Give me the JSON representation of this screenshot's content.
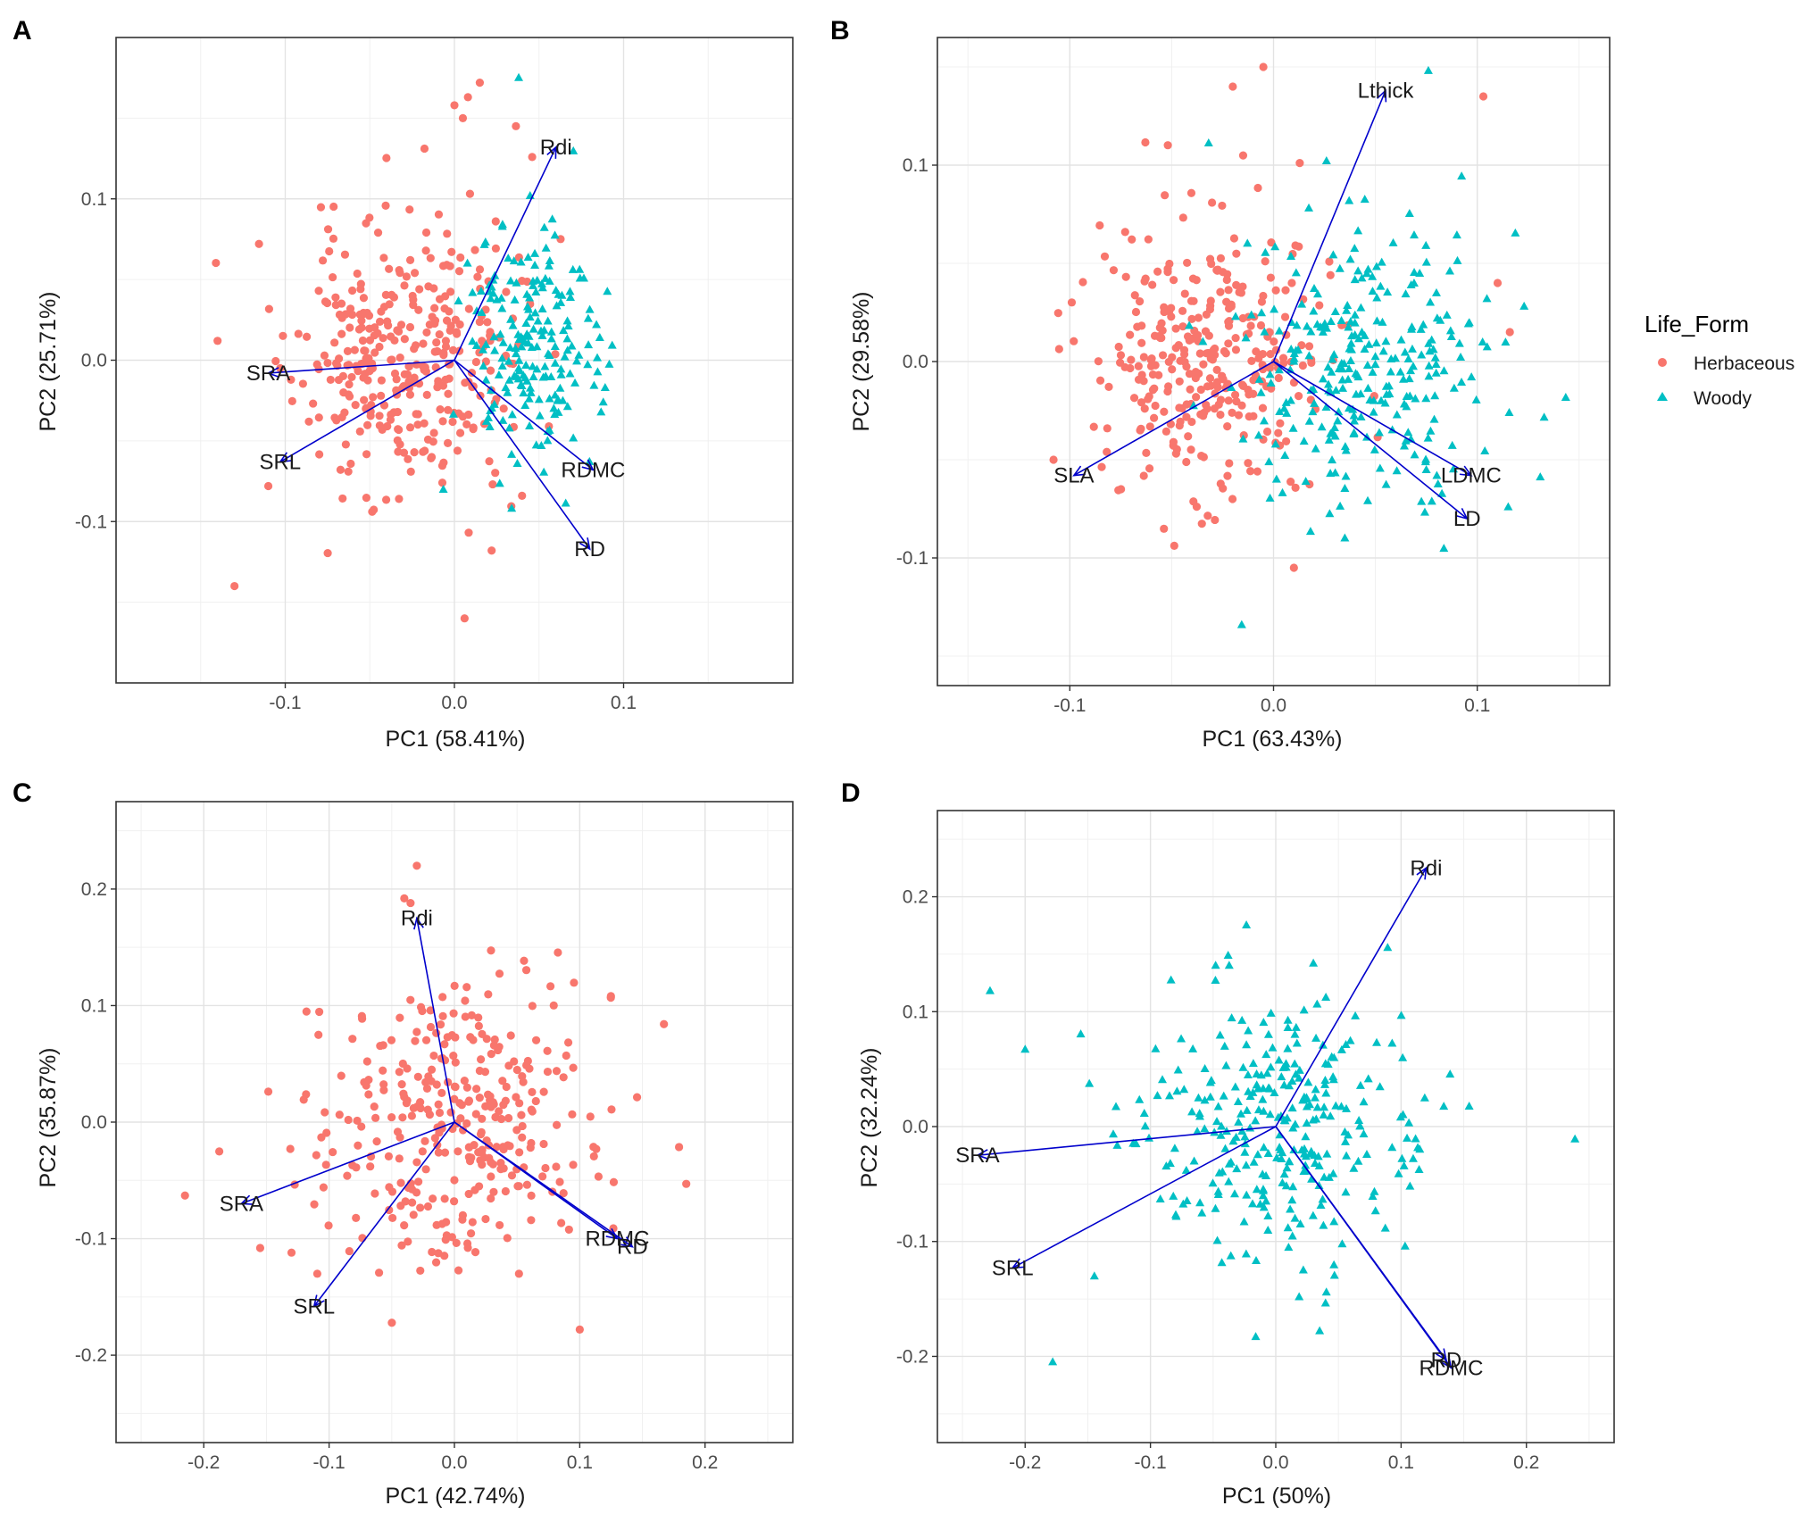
{
  "legend": {
    "title": "Life_Form",
    "items": [
      {
        "label": "Herbaceous",
        "color": "#F8766D",
        "shape": "circle"
      },
      {
        "label": "Woody",
        "color": "#00BFC4",
        "shape": "triangle"
      }
    ]
  },
  "arrow_color": "#0000CC",
  "chart_data": [
    {
      "panel": "A",
      "type": "scatter",
      "subtype": "pca-biplot",
      "xlabel": "PC1 (58.41%)",
      "ylabel": "PC2 (25.71%)",
      "xlim": [
        -0.2,
        0.2
      ],
      "ylim": [
        -0.2,
        0.2
      ],
      "xticks": [
        -0.1,
        0.0,
        0.1
      ],
      "xtick_labels": [
        "-0.1",
        "0.0",
        "0.1"
      ],
      "yticks": [
        -0.1,
        0.0,
        0.1
      ],
      "ytick_labels": [
        "-0.1",
        "0.0",
        "0.1"
      ],
      "loadings": [
        {
          "label": "Rdi",
          "x": 0.06,
          "y": 0.132
        },
        {
          "label": "SRA",
          "x": -0.11,
          "y": -0.008
        },
        {
          "label": "SRL",
          "x": -0.103,
          "y": -0.063
        },
        {
          "label": "RDMC",
          "x": 0.082,
          "y": -0.068
        },
        {
          "label": "RD",
          "x": 0.08,
          "y": -0.117
        }
      ],
      "clusters": [
        {
          "group": "Herbaceous",
          "n": 340,
          "cx": -0.03,
          "cy": 0.0,
          "sx": 0.032,
          "sy": 0.042,
          "seed": 11
        },
        {
          "group": "Woody",
          "n": 200,
          "cx": 0.045,
          "cy": 0.005,
          "sx": 0.02,
          "sy": 0.038,
          "seed": 23
        }
      ],
      "notable_points": [
        {
          "group": "Herbaceous",
          "x": 0.015,
          "y": 0.172
        },
        {
          "group": "Herbaceous",
          "x": 0.0,
          "y": 0.158
        },
        {
          "group": "Herbaceous",
          "x": 0.005,
          "y": 0.15
        },
        {
          "group": "Herbaceous",
          "x": 0.008,
          "y": 0.163
        },
        {
          "group": "Woody",
          "x": 0.038,
          "y": 0.175
        },
        {
          "group": "Herbaceous",
          "x": -0.14,
          "y": 0.012
        },
        {
          "group": "Herbaceous",
          "x": -0.13,
          "y": -0.14
        },
        {
          "group": "Herbaceous",
          "x": 0.006,
          "y": -0.16
        },
        {
          "group": "Herbaceous",
          "x": 0.022,
          "y": -0.118
        },
        {
          "group": "Herbaceous",
          "x": -0.11,
          "y": -0.078
        }
      ]
    },
    {
      "panel": "B",
      "type": "scatter",
      "subtype": "pca-biplot",
      "xlabel": "PC1 (63.43%)",
      "ylabel": "PC2 (29.58%)",
      "xlim": [
        -0.165,
        0.165
      ],
      "ylim": [
        -0.165,
        0.165
      ],
      "xticks": [
        -0.1,
        0.0,
        0.1
      ],
      "xtick_labels": [
        "-0.1",
        "0.0",
        "0.1"
      ],
      "yticks": [
        -0.1,
        0.0,
        0.1
      ],
      "ytick_labels": [
        "-0.1",
        "0.0",
        "0.1"
      ],
      "loadings": [
        {
          "label": "Lthick",
          "x": 0.055,
          "y": 0.138
        },
        {
          "label": "SLA",
          "x": -0.098,
          "y": -0.058
        },
        {
          "label": "LDMC",
          "x": 0.097,
          "y": -0.058
        },
        {
          "label": "LD",
          "x": 0.095,
          "y": -0.08
        }
      ],
      "clusters": [
        {
          "group": "Herbaceous",
          "n": 320,
          "cx": -0.03,
          "cy": 0.003,
          "sx": 0.028,
          "sy": 0.035,
          "seed": 37
        },
        {
          "group": "Woody",
          "n": 280,
          "cx": 0.045,
          "cy": 0.0,
          "sx": 0.03,
          "sy": 0.04,
          "seed": 41
        }
      ],
      "notable_points": [
        {
          "group": "Herbaceous",
          "x": -0.005,
          "y": 0.15
        },
        {
          "group": "Herbaceous",
          "x": -0.02,
          "y": 0.14
        },
        {
          "group": "Herbaceous",
          "x": 0.103,
          "y": 0.135
        },
        {
          "group": "Woody",
          "x": 0.076,
          "y": 0.148
        },
        {
          "group": "Herbaceous",
          "x": 0.11,
          "y": 0.04
        },
        {
          "group": "Herbaceous",
          "x": 0.116,
          "y": 0.015
        },
        {
          "group": "Woody",
          "x": 0.123,
          "y": 0.028
        },
        {
          "group": "Herbaceous",
          "x": 0.01,
          "y": -0.105
        },
        {
          "group": "Herbaceous",
          "x": -0.108,
          "y": -0.05
        },
        {
          "group": "Woody",
          "x": 0.035,
          "y": -0.09
        }
      ]
    },
    {
      "panel": "C",
      "type": "scatter",
      "subtype": "pca-biplot",
      "xlabel": "PC1 (42.74%)",
      "ylabel": "PC2 (35.87%)",
      "xlim": [
        -0.27,
        0.27
      ],
      "ylim": [
        -0.275,
        0.275
      ],
      "xticks": [
        -0.2,
        -0.1,
        0.0,
        0.1,
        0.2
      ],
      "xtick_labels": [
        "-0.2",
        "-0.1",
        "0.0",
        "0.1",
        "0.2"
      ],
      "yticks": [
        -0.2,
        -0.1,
        0.0,
        0.1,
        0.2
      ],
      "ytick_labels": [
        "-0.2",
        "-0.1",
        "0.0",
        "0.1",
        "0.2"
      ],
      "loadings": [
        {
          "label": "Rdi",
          "x": -0.03,
          "y": 0.175
        },
        {
          "label": "SRA",
          "x": -0.17,
          "y": -0.07
        },
        {
          "label": "SRL",
          "x": -0.112,
          "y": -0.158
        },
        {
          "label": "RDMC",
          "x": 0.13,
          "y": -0.1
        },
        {
          "label": "RD",
          "x": 0.142,
          "y": -0.107
        }
      ],
      "clusters": [
        {
          "group": "Herbaceous",
          "n": 330,
          "cx": 0.0,
          "cy": 0.0,
          "sx": 0.055,
          "sy": 0.06,
          "seed": 53
        }
      ],
      "notable_points": [
        {
          "group": "Herbaceous",
          "x": -0.03,
          "y": 0.22
        },
        {
          "group": "Herbaceous",
          "x": -0.04,
          "y": 0.192
        },
        {
          "group": "Herbaceous",
          "x": -0.035,
          "y": 0.188
        },
        {
          "group": "Herbaceous",
          "x": -0.215,
          "y": -0.063
        },
        {
          "group": "Herbaceous",
          "x": 0.185,
          "y": -0.053
        },
        {
          "group": "Herbaceous",
          "x": 0.1,
          "y": -0.178
        },
        {
          "group": "Herbaceous",
          "x": -0.155,
          "y": -0.108
        },
        {
          "group": "Herbaceous",
          "x": -0.13,
          "y": -0.112
        }
      ]
    },
    {
      "panel": "D",
      "type": "scatter",
      "subtype": "pca-biplot",
      "xlabel": "PC1 (50%)",
      "ylabel": "PC2 (32.24%)",
      "xlim": [
        -0.27,
        0.27
      ],
      "ylim": [
        -0.275,
        0.275
      ],
      "xticks": [
        -0.2,
        -0.1,
        0.0,
        0.1,
        0.2
      ],
      "xtick_labels": [
        "-0.2",
        "-0.1",
        "0.0",
        "0.1",
        "0.2"
      ],
      "yticks": [
        -0.2,
        -0.1,
        0.0,
        0.1,
        0.2
      ],
      "ytick_labels": [
        "-0.2",
        "-0.1",
        "0.0",
        "0.1",
        "0.2"
      ],
      "loadings": [
        {
          "label": "Rdi",
          "x": 0.12,
          "y": 0.225
        },
        {
          "label": "SRA",
          "x": -0.238,
          "y": -0.025
        },
        {
          "label": "SRL",
          "x": -0.21,
          "y": -0.123
        },
        {
          "label": "RDMC",
          "x": 0.14,
          "y": -0.21
        },
        {
          "label": "RD",
          "x": 0.136,
          "y": -0.203
        }
      ],
      "clusters": [
        {
          "group": "Woody",
          "n": 300,
          "cx": 0.0,
          "cy": 0.0,
          "sx": 0.058,
          "sy": 0.055,
          "seed": 67
        }
      ],
      "notable_points": [
        {
          "group": "Woody",
          "x": -0.228,
          "y": 0.118
        },
        {
          "group": "Woody",
          "x": -0.2,
          "y": 0.067
        },
        {
          "group": "Woody",
          "x": -0.178,
          "y": -0.205
        },
        {
          "group": "Woody",
          "x": -0.016,
          "y": -0.183
        },
        {
          "group": "Woody",
          "x": 0.035,
          "y": -0.178
        },
        {
          "group": "Woody",
          "x": 0.03,
          "y": 0.142
        },
        {
          "group": "Woody",
          "x": -0.048,
          "y": 0.14
        }
      ]
    }
  ]
}
